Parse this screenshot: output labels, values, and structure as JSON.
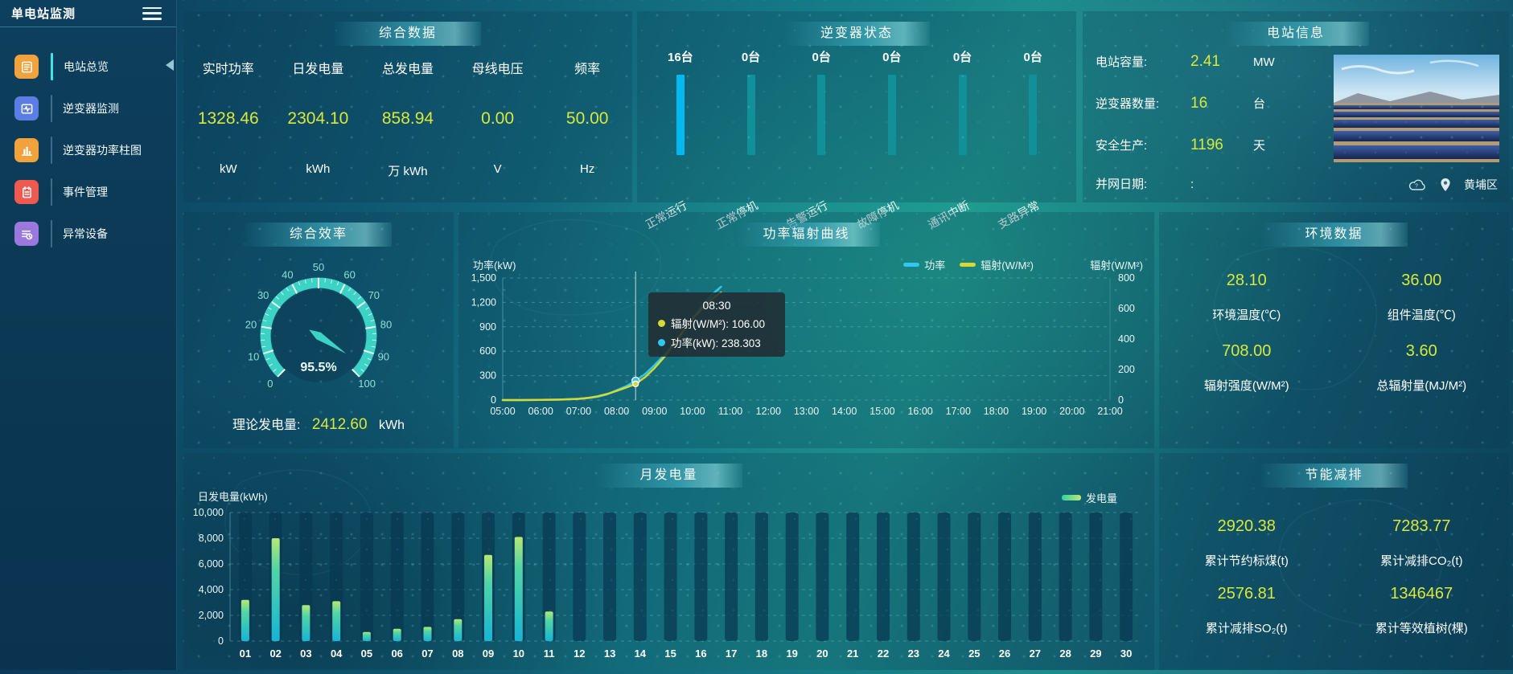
{
  "app": {
    "title": "单电站监测"
  },
  "sidebar": {
    "items": [
      {
        "label": "电站总览"
      },
      {
        "label": "逆变器监测"
      },
      {
        "label": "逆变器功率柱图"
      },
      {
        "label": "事件管理"
      },
      {
        "label": "异常设备"
      }
    ]
  },
  "summary": {
    "title": "综合数据",
    "metrics": [
      {
        "label": "实时功率",
        "value": "1328.46",
        "unit": "kW"
      },
      {
        "label": "日发电量",
        "value": "2304.10",
        "unit": "kWh"
      },
      {
        "label": "总发电量",
        "value": "858.94",
        "unit": "万 kWh"
      },
      {
        "label": "母线电压",
        "value": "0.00",
        "unit": "V"
      },
      {
        "label": "频率",
        "value": "50.00",
        "unit": "Hz"
      }
    ]
  },
  "inverter_status": {
    "title": "逆变器状态",
    "items": [
      {
        "count": "16台",
        "label": "正常运行"
      },
      {
        "count": "0台",
        "label": "正常停机"
      },
      {
        "count": "0台",
        "label": "告警运行"
      },
      {
        "count": "0台",
        "label": "故障停机"
      },
      {
        "count": "0台",
        "label": "通讯中断"
      },
      {
        "count": "0台",
        "label": "支路异常"
      }
    ]
  },
  "station_info": {
    "title": "电站信息",
    "rows": [
      {
        "label": "电站容量:",
        "value": "2.41",
        "unit": "MW"
      },
      {
        "label": "逆变器数量:",
        "value": "16",
        "unit": "台"
      },
      {
        "label": "安全生产:",
        "value": "1196",
        "unit": "天"
      },
      {
        "label": "并网日期:",
        "value": ":",
        "unit": ""
      }
    ],
    "location": "黄埔区"
  },
  "efficiency": {
    "title": "综合效率",
    "gauge": {
      "value": 95.5,
      "display": "95.5%",
      "min": 0,
      "max": 100,
      "tick_step": 10
    },
    "theory": {
      "label": "理论发电量:",
      "value": "2412.60",
      "unit": "kWh"
    }
  },
  "environment": {
    "title": "环境数据",
    "metrics": [
      {
        "value": "28.10",
        "label": "环境温度(℃)"
      },
      {
        "value": "36.00",
        "label": "组件温度(℃)"
      },
      {
        "value": "708.00",
        "label": "辐射强度(W/M²)"
      },
      {
        "value": "3.60",
        "label": "总辐射量(MJ/M²)"
      }
    ]
  },
  "saving": {
    "title": "节能减排",
    "metrics": [
      {
        "value": "2920.38",
        "label": "累计节约标煤(t)"
      },
      {
        "value": "7283.77",
        "label": "累计减排CO₂(t)"
      },
      {
        "value": "2576.81",
        "label": "累计减排SO₂(t)"
      },
      {
        "value": "1346467",
        "label": "累计等效植树(棵)"
      }
    ]
  },
  "chart_data": [
    {
      "id": "power-radiation-curve",
      "type": "line",
      "title": "功率辐射曲线",
      "ylabel_left": "功率(kW)",
      "ylabel_right": "辐射(W/M²)",
      "xrange": [
        5,
        21
      ],
      "xticks": [
        "05:00",
        "06:00",
        "07:00",
        "08:00",
        "09:00",
        "10:00",
        "11:00",
        "12:00",
        "13:00",
        "14:00",
        "15:00",
        "16:00",
        "17:00",
        "18:00",
        "19:00",
        "20:00",
        "21:00"
      ],
      "ylim_left": [
        0,
        1500
      ],
      "yticks_left": [
        "0",
        "300",
        "600",
        "900",
        "1,200",
        "1,500"
      ],
      "ylim_right": [
        0,
        800
      ],
      "yticks_right": [
        "0",
        "200",
        "400",
        "600",
        "800"
      ],
      "grid": "dashed-horizontal",
      "legend_position": "top-right",
      "series": [
        {
          "name": "功率",
          "color": "#2fc8f2",
          "axis": "left",
          "x": [
            5,
            5.5,
            6,
            6.5,
            7,
            7.25,
            7.5,
            7.75,
            8,
            8.25,
            8.5,
            8.75,
            9,
            9.25,
            9.5,
            9.75,
            10,
            10.25,
            10.5,
            10.75
          ],
          "values": [
            0,
            0,
            2,
            5,
            15,
            25,
            40,
            70,
            120,
            170,
            238.303,
            320,
            430,
            550,
            690,
            840,
            1000,
            1150,
            1290,
            1390
          ]
        },
        {
          "name": "辐射(W/M²)",
          "color": "#d8d832",
          "axis": "right",
          "x": [
            5,
            5.5,
            6,
            6.5,
            7,
            7.25,
            7.5,
            7.75,
            8,
            8.25,
            8.5,
            8.75,
            9,
            9.25,
            9.5,
            9.75,
            10,
            10.25,
            10.5,
            10.75
          ],
          "values": [
            0,
            0,
            1,
            3,
            8,
            14,
            25,
            40,
            60,
            82,
            106,
            150,
            210,
            280,
            360,
            450,
            530,
            600,
            660,
            705
          ]
        }
      ],
      "tooltip": {
        "x": 8.5,
        "time": "08:30",
        "rows": [
          {
            "series": "辐射(W/M²)",
            "text": "辐射(W/M²): 106.00",
            "color": "#d8d832"
          },
          {
            "series": "功率(kW)",
            "text": "功率(kW): 238.303",
            "color": "#2fc8f2"
          }
        ]
      }
    },
    {
      "id": "monthly-generation",
      "type": "bar",
      "title": "月发电量",
      "ylabel": "日发电量(kWh)",
      "legend": "发电量",
      "categories": [
        "01",
        "02",
        "03",
        "04",
        "05",
        "06",
        "07",
        "08",
        "09",
        "10",
        "11",
        "12",
        "13",
        "14",
        "15",
        "16",
        "17",
        "18",
        "19",
        "20",
        "21",
        "22",
        "23",
        "24",
        "25",
        "26",
        "27",
        "28",
        "29",
        "30"
      ],
      "values": [
        3200,
        8000,
        2800,
        3100,
        700,
        950,
        1100,
        1700,
        6700,
        8100,
        2300,
        0,
        0,
        0,
        0,
        0,
        0,
        0,
        0,
        0,
        0,
        0,
        0,
        0,
        0,
        0,
        0,
        0,
        0,
        0
      ],
      "ylim": [
        0,
        10000
      ],
      "yticks": [
        "0",
        "2,000",
        "4,000",
        "6,000",
        "8,000",
        "10,000"
      ],
      "bar_colors": {
        "top": "#b6e873",
        "bottom": "#17b4d4",
        "background": "rgba(9,55,82,0.72)"
      }
    }
  ]
}
